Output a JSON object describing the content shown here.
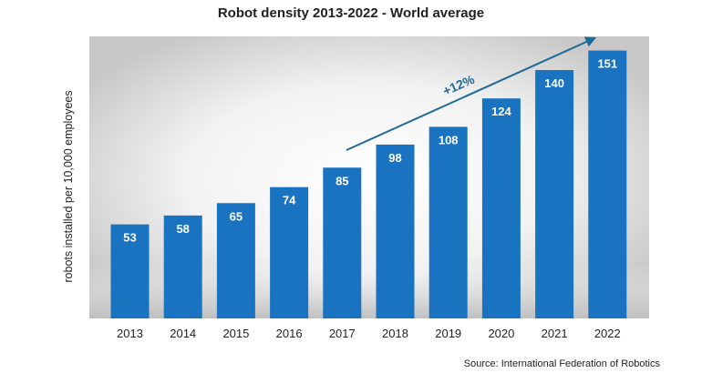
{
  "chart_data": {
    "type": "bar",
    "title": "Robot density 2013-2022 - World average",
    "ylabel": "robots installed per 10,000 employees",
    "xlabel": "",
    "categories": [
      "2013",
      "2014",
      "2015",
      "2016",
      "2017",
      "2018",
      "2019",
      "2020",
      "2021",
      "2022"
    ],
    "values": [
      53,
      58,
      65,
      74,
      85,
      98,
      108,
      124,
      140,
      151
    ],
    "ylim": [
      0,
      160
    ],
    "grid": false,
    "bar_color": "#1a73c1",
    "annotation": {
      "text": "+12%",
      "color": "#1f6a96"
    },
    "source": "Source: International Federation of Robotics"
  }
}
